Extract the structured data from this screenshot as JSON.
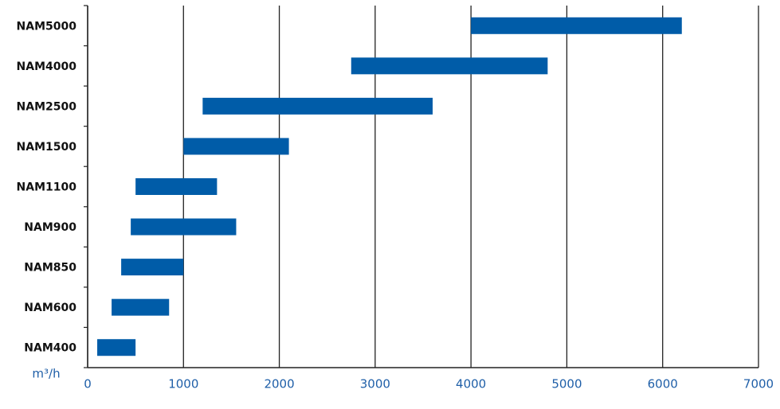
{
  "chart_data": {
    "type": "range-bar",
    "orientation": "horizontal",
    "categories": [
      "NAM5000",
      "NAM4000",
      "NAM2500",
      "NAM1500",
      "NAM1100",
      "NAM900",
      "NAM850",
      "NAM600",
      "NAM400"
    ],
    "low": [
      4000,
      2750,
      1200,
      1000,
      500,
      450,
      350,
      250,
      100
    ],
    "high": [
      6200,
      4800,
      3600,
      2100,
      1350,
      1550,
      1000,
      850,
      500
    ],
    "color": "#005ca8",
    "xlabel": "m³/h",
    "xlim": [
      0,
      7000
    ],
    "xticks": [
      0,
      1000,
      2000,
      3000,
      4000,
      5000,
      6000,
      7000
    ],
    "grid": true
  }
}
